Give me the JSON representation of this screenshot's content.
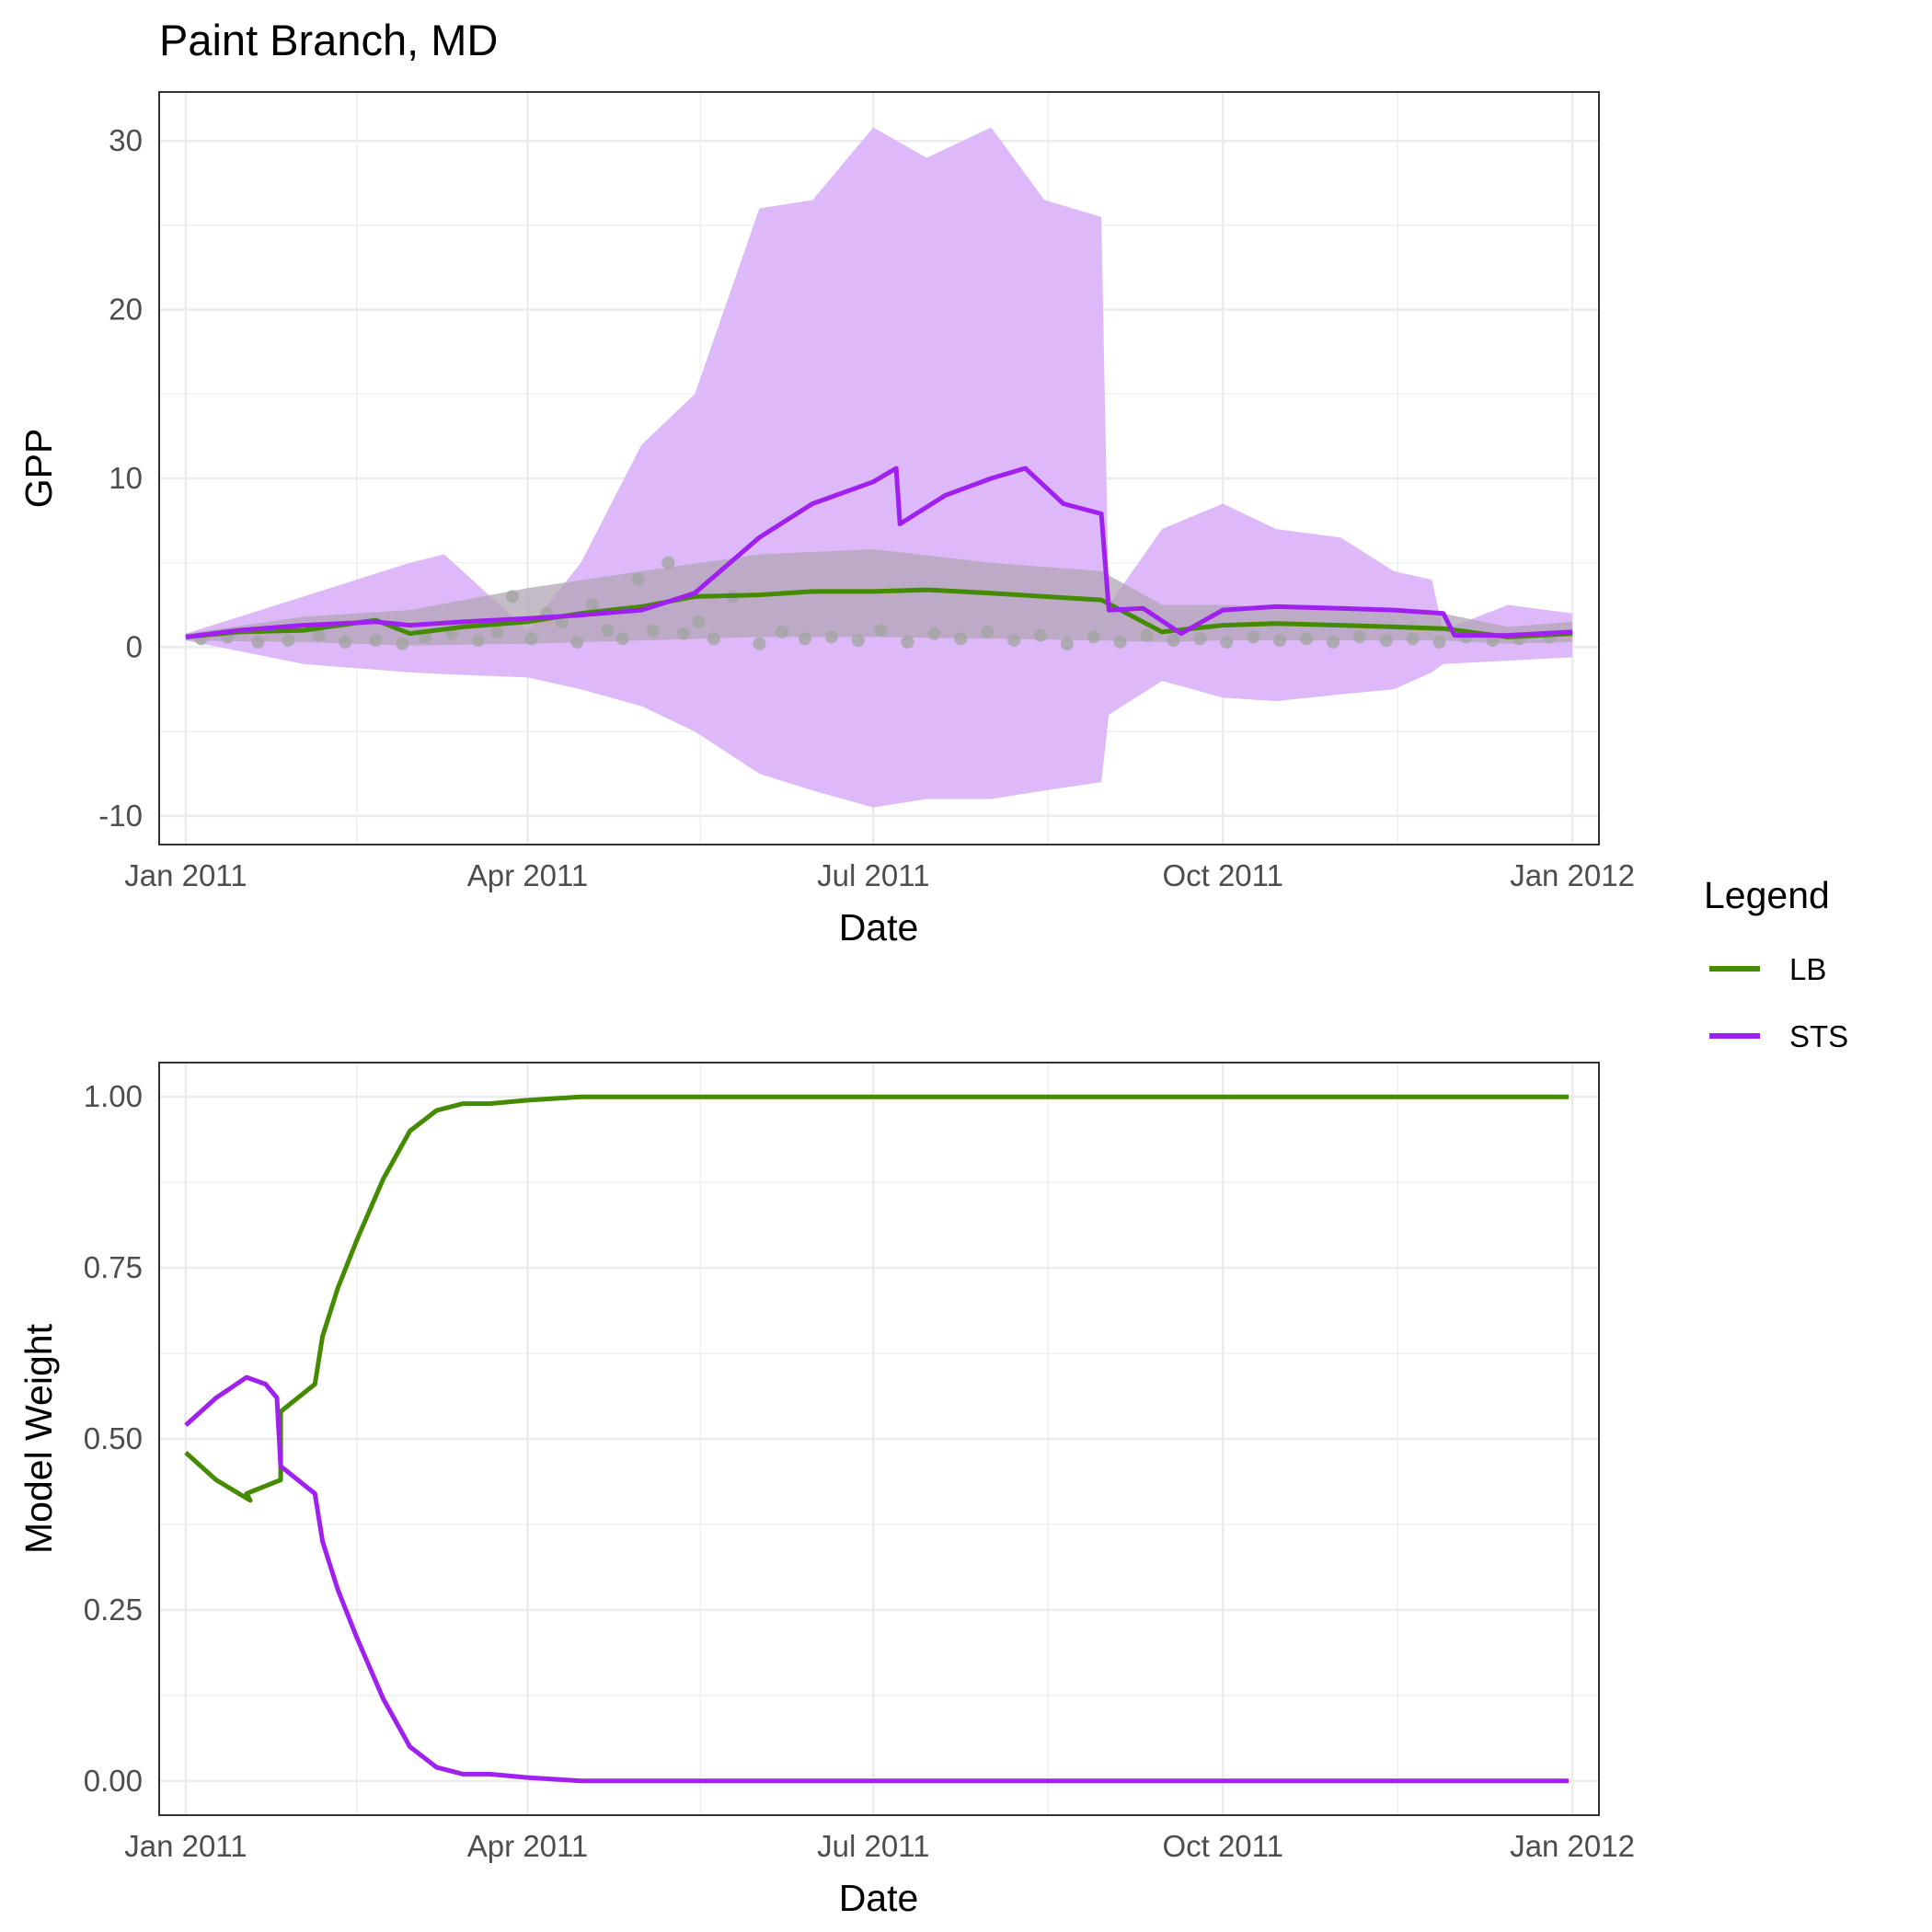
{
  "title": "Paint Branch, MD",
  "legend": {
    "title": "Legend",
    "items": [
      {
        "label": "LB",
        "color": "#458B00"
      },
      {
        "label": "STS",
        "color": "#A020F0"
      }
    ]
  },
  "colors": {
    "LB": "#458B00",
    "STS": "#A020F0",
    "sts_band": "#DDB9F9",
    "lb_band": "#B0A6B4",
    "observed_points": "#A6A6A6",
    "grid": "#EBEBEB",
    "panel_border": "#333333"
  },
  "chart_data": [
    {
      "type": "line",
      "panel": "top",
      "xlabel": "Date",
      "ylabel": "GPP",
      "xlim": [
        "2011-01-01",
        "2012-01-01"
      ],
      "ylim": [
        -11.7,
        32.9
      ],
      "x_ticks": [
        "Jan 2011",
        "Apr 2011",
        "Jul 2011",
        "Oct 2011",
        "Jan 2012"
      ],
      "x_tick_dates": [
        "2011-01-01",
        "2011-04-01",
        "2011-07-01",
        "2011-10-01",
        "2012-01-01"
      ],
      "y_ticks": [
        "-10",
        "0",
        "10",
        "20",
        "30"
      ],
      "y_tick_values": [
        -10,
        0,
        10,
        20,
        30
      ],
      "grid": true,
      "series": [
        {
          "name": "LB",
          "color": "#458B00",
          "x": [
            "2011-01-01",
            "2011-01-15",
            "2011-02-01",
            "2011-02-20",
            "2011-03-01",
            "2011-03-15",
            "2011-04-01",
            "2011-04-15",
            "2011-05-01",
            "2011-05-15",
            "2011-06-01",
            "2011-06-15",
            "2011-07-01",
            "2011-07-15",
            "2011-08-01",
            "2011-08-15",
            "2011-08-30",
            "2011-09-15",
            "2011-10-01",
            "2011-10-15",
            "2011-11-01",
            "2011-11-15",
            "2011-11-28",
            "2011-12-15",
            "2012-01-01"
          ],
          "y": [
            0.6,
            0.9,
            1.0,
            1.6,
            0.8,
            1.2,
            1.5,
            2.0,
            2.4,
            3.0,
            3.1,
            3.3,
            3.3,
            3.4,
            3.2,
            3.0,
            2.8,
            0.9,
            1.3,
            1.4,
            1.3,
            1.2,
            1.1,
            0.6,
            0.8
          ]
        },
        {
          "name": "STS",
          "color": "#A020F0",
          "x": [
            "2011-01-01",
            "2011-01-15",
            "2011-02-01",
            "2011-02-20",
            "2011-03-01",
            "2011-03-15",
            "2011-04-01",
            "2011-04-15",
            "2011-05-01",
            "2011-05-15",
            "2011-06-01",
            "2011-06-15",
            "2011-07-01",
            "2011-07-07",
            "2011-07-08",
            "2011-07-20",
            "2011-08-01",
            "2011-08-10",
            "2011-08-20",
            "2011-08-30",
            "2011-09-01",
            "2011-09-10",
            "2011-09-20",
            "2011-10-01",
            "2011-10-15",
            "2011-11-01",
            "2011-11-15",
            "2011-11-28",
            "2011-12-01",
            "2011-12-15",
            "2012-01-01"
          ],
          "y": [
            0.6,
            1.0,
            1.3,
            1.5,
            1.3,
            1.5,
            1.7,
            1.9,
            2.2,
            3.2,
            6.5,
            8.5,
            9.8,
            10.6,
            7.3,
            9.0,
            10.0,
            10.6,
            8.5,
            7.9,
            2.2,
            2.3,
            0.8,
            2.2,
            2.4,
            2.3,
            2.2,
            2.0,
            0.7,
            0.7,
            0.9
          ]
        }
      ],
      "bands": [
        {
          "name": "STS interval",
          "color": "#DDB9F9",
          "x": [
            "2011-01-01",
            "2011-02-01",
            "2011-03-01",
            "2011-03-10",
            "2011-04-01",
            "2011-04-15",
            "2011-05-01",
            "2011-05-15",
            "2011-06-01",
            "2011-06-15",
            "2011-07-01",
            "2011-07-15",
            "2011-08-01",
            "2011-08-15",
            "2011-08-30",
            "2011-09-01",
            "2011-09-15",
            "2011-10-01",
            "2011-10-15",
            "2011-11-01",
            "2011-11-15",
            "2011-11-25",
            "2011-11-28",
            "2011-12-15",
            "2012-01-01"
          ],
          "upper": [
            0.8,
            3.0,
            5.0,
            5.5,
            1.0,
            5.0,
            12.0,
            15.0,
            26.0,
            26.5,
            30.8,
            29.0,
            30.8,
            26.5,
            25.5,
            2.5,
            7.0,
            8.5,
            7.0,
            6.5,
            4.5,
            4.0,
            1.0,
            2.5,
            2.0
          ],
          "lower": [
            0.4,
            -1.0,
            -1.5,
            -1.6,
            -1.8,
            -2.5,
            -3.5,
            -5.0,
            -7.5,
            -8.5,
            -9.5,
            -9.0,
            -9.0,
            -8.5,
            -8.0,
            -4.0,
            -2.0,
            -3.0,
            -3.2,
            -2.8,
            -2.5,
            -1.5,
            -1.0,
            -0.8,
            -0.6
          ]
        },
        {
          "name": "LB interval",
          "color": "#B0A6B4",
          "x": [
            "2011-01-01",
            "2011-02-01",
            "2011-03-01",
            "2011-04-01",
            "2011-05-01",
            "2011-06-01",
            "2011-07-01",
            "2011-08-01",
            "2011-08-30",
            "2011-09-15",
            "2011-10-01",
            "2011-11-01",
            "2011-11-28",
            "2011-12-15",
            "2012-01-01"
          ],
          "upper": [
            0.8,
            1.8,
            2.2,
            3.5,
            4.5,
            5.5,
            5.8,
            5.0,
            4.5,
            2.5,
            2.5,
            2.2,
            2.0,
            1.2,
            1.5
          ],
          "lower": [
            0.4,
            0.3,
            0.1,
            0.2,
            0.4,
            0.6,
            0.6,
            0.5,
            0.4,
            0.3,
            0.4,
            0.4,
            0.4,
            0.2,
            0.3
          ]
        }
      ],
      "observed_points": {
        "color": "#A6A6A6",
        "x": [
          "2011-01-05",
          "2011-01-12",
          "2011-01-20",
          "2011-01-28",
          "2011-02-05",
          "2011-02-12",
          "2011-02-20",
          "2011-02-27",
          "2011-03-05",
          "2011-03-12",
          "2011-03-19",
          "2011-03-24",
          "2011-03-28",
          "2011-04-02",
          "2011-04-06",
          "2011-04-10",
          "2011-04-14",
          "2011-04-18",
          "2011-04-22",
          "2011-04-26",
          "2011-04-30",
          "2011-05-04",
          "2011-05-08",
          "2011-05-12",
          "2011-05-16",
          "2011-05-20",
          "2011-05-25",
          "2011-06-01",
          "2011-06-07",
          "2011-06-13",
          "2011-06-20",
          "2011-06-27",
          "2011-07-03",
          "2011-07-10",
          "2011-07-17",
          "2011-07-24",
          "2011-07-31",
          "2011-08-07",
          "2011-08-14",
          "2011-08-21",
          "2011-08-28",
          "2011-09-04",
          "2011-09-11",
          "2011-09-18",
          "2011-09-25",
          "2011-10-02",
          "2011-10-09",
          "2011-10-16",
          "2011-10-23",
          "2011-10-30",
          "2011-11-06",
          "2011-11-13",
          "2011-11-20",
          "2011-11-27",
          "2011-12-04",
          "2011-12-11",
          "2011-12-18",
          "2011-12-26"
        ],
        "y": [
          0.5,
          0.6,
          0.3,
          0.4,
          0.7,
          0.3,
          0.4,
          0.2,
          0.6,
          0.8,
          0.4,
          0.9,
          3.0,
          0.5,
          2.0,
          1.5,
          0.3,
          2.5,
          1.0,
          0.5,
          4.0,
          1.0,
          5.0,
          0.8,
          1.5,
          0.5,
          3.0,
          0.2,
          0.9,
          0.5,
          0.6,
          0.4,
          1.0,
          0.3,
          0.8,
          0.5,
          0.9,
          0.4,
          0.7,
          0.2,
          0.6,
          0.3,
          0.7,
          0.4,
          0.5,
          0.3,
          0.6,
          0.4,
          0.5,
          0.3,
          0.6,
          0.4,
          0.5,
          0.3,
          0.6,
          0.4,
          0.5,
          0.6
        ]
      }
    },
    {
      "type": "line",
      "panel": "bottom",
      "xlabel": "Date",
      "ylabel": "Model Weight",
      "xlim": [
        "2011-01-01",
        "2012-01-01"
      ],
      "ylim": [
        -0.05,
        1.05
      ],
      "x_ticks": [
        "Jan 2011",
        "Apr 2011",
        "Jul 2011",
        "Oct 2011",
        "Jan 2012"
      ],
      "x_tick_dates": [
        "2011-01-01",
        "2011-04-01",
        "2011-07-01",
        "2011-10-01",
        "2012-01-01"
      ],
      "y_ticks": [
        "0.00",
        "0.25",
        "0.50",
        "0.75",
        "1.00"
      ],
      "y_tick_values": [
        0,
        0.25,
        0.5,
        0.75,
        1.0
      ],
      "grid": true,
      "series": [
        {
          "name": "LB",
          "color": "#458B00",
          "x": [
            "2011-01-01",
            "2011-01-09",
            "2011-01-18",
            "2011-01-17",
            "2011-01-26",
            "2011-01-26",
            "2011-02-04",
            "2011-02-06",
            "2011-02-10",
            "2011-02-15",
            "2011-02-22",
            "2011-03-01",
            "2011-03-08",
            "2011-03-15",
            "2011-03-22",
            "2011-04-01",
            "2011-04-15",
            "2011-05-01",
            "2011-06-01",
            "2011-08-01",
            "2011-10-01",
            "2011-12-31"
          ],
          "y": [
            0.48,
            0.44,
            0.41,
            0.42,
            0.44,
            0.54,
            0.58,
            0.65,
            0.72,
            0.79,
            0.88,
            0.95,
            0.98,
            0.99,
            0.99,
            0.995,
            1.0,
            1.0,
            1.0,
            1.0,
            1.0,
            1.0
          ]
        },
        {
          "name": "STS",
          "color": "#A020F0",
          "x": [
            "2011-01-01",
            "2011-01-09",
            "2011-01-17",
            "2011-01-22",
            "2011-01-25",
            "2011-01-26",
            "2011-02-04",
            "2011-02-06",
            "2011-02-10",
            "2011-02-15",
            "2011-02-22",
            "2011-03-01",
            "2011-03-08",
            "2011-03-15",
            "2011-03-22",
            "2011-04-01",
            "2011-04-15",
            "2011-05-01",
            "2011-06-01",
            "2011-08-01",
            "2011-10-01",
            "2011-12-31"
          ],
          "y": [
            0.52,
            0.56,
            0.59,
            0.58,
            0.56,
            0.46,
            0.42,
            0.35,
            0.28,
            0.21,
            0.12,
            0.05,
            0.02,
            0.01,
            0.01,
            0.005,
            0.0,
            0.0,
            0.0,
            0.0,
            0.0,
            0.0
          ]
        }
      ]
    }
  ]
}
